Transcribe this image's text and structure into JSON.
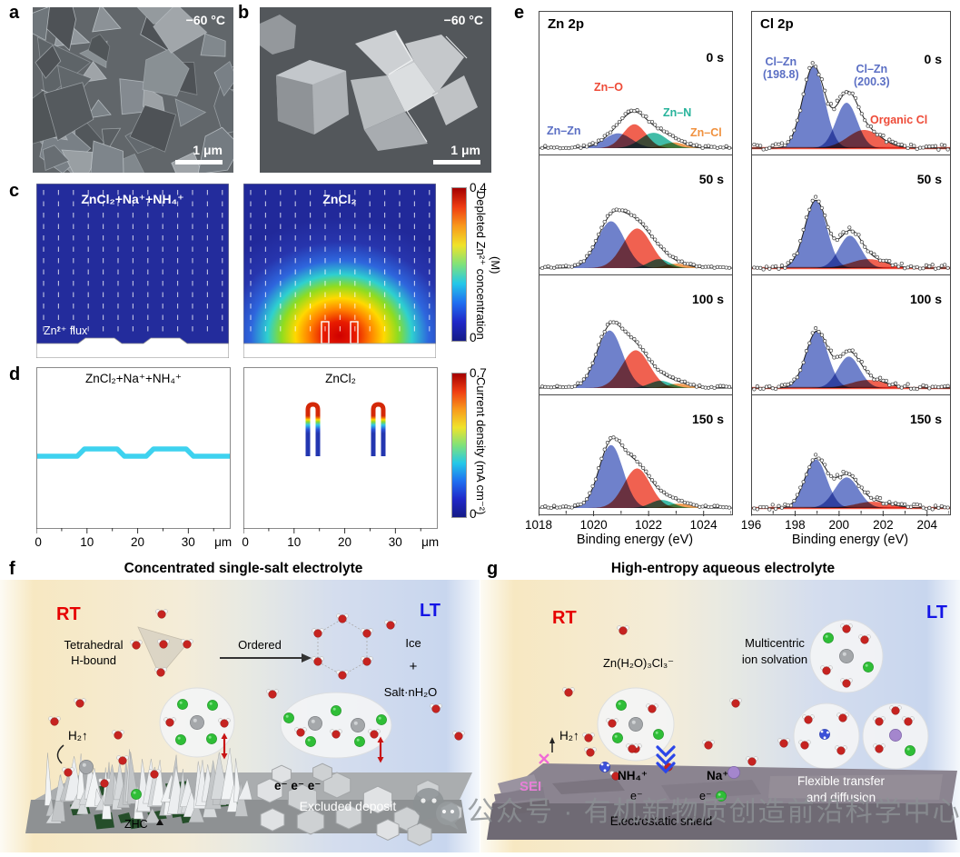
{
  "figure": {
    "panels": {
      "a": {
        "label": "a",
        "temperature": "−60 °C",
        "scale_bar": "1 μm"
      },
      "b": {
        "label": "b",
        "temperature": "−60 °C",
        "scale_bar": "1 μm"
      },
      "c": {
        "label": "c"
      },
      "d": {
        "label": "d"
      },
      "e": {
        "label": "e"
      },
      "f": {
        "label": "f",
        "title": "Concentrated single-salt electrolyte",
        "rt": "RT",
        "lt": "LT",
        "annotations": {
          "tetra1": "Tetrahedral",
          "tetra2": "H-bound",
          "ordered": "Ordered",
          "ice": "Ice",
          "plus": "+",
          "salt": "Salt·nH₂O",
          "h2": "H₂↑",
          "zhc": "ZHC",
          "electrons": "e⁻ e⁻ e⁻",
          "excluded": "Excluded deposit"
        }
      },
      "g": {
        "label": "g",
        "title": "High-entropy aqueous electrolyte",
        "rt": "RT",
        "lt": "LT",
        "annotations": {
          "complex": "Zn(H₂O)₃Cl₃⁻",
          "multi1": "Multicentric",
          "multi2": "ion solvation",
          "h2": "H₂↑",
          "sei": "SEI",
          "nh4": "NH₄⁺",
          "e1": "e⁻",
          "na": "Na⁺",
          "e2": "e⁻",
          "shield": "Electrostatic shield",
          "flex1": "Flexible transfer",
          "flex2": "and diffusion"
        }
      }
    },
    "watermark": {
      "icon": "wechat-icon",
      "text": "公众号 · 有机新物质创造前沿科学中心"
    }
  },
  "chart_data": [
    {
      "id": "c-simulation",
      "type": "heatmap",
      "panel_label": "c",
      "panels": [
        {
          "title": "ZnCl₂+Na⁺+NH₄⁺",
          "pattern": "uniform low Zn2+ depletion (~0 M) over flat deposit"
        },
        {
          "title": "ZnCl₂",
          "pattern": "hemispherical depletion plume reaching ~0.4 M above two protrusions"
        }
      ],
      "annotation": "Zn²⁺ flux",
      "colorbar": {
        "min": 0,
        "max": 0.4,
        "label": "Depleted Zn²⁺ concentration (M)"
      }
    },
    {
      "id": "d-simulation",
      "type": "area",
      "panel_label": "d",
      "panels": [
        {
          "title": "ZnCl₂+Na⁺+NH₄⁺",
          "profile": "uniform ~0.25 mA cm⁻² layer with two gentle wide bumps"
        },
        {
          "title": "ZnCl₂",
          "profile": "two sharp protrusions near 13 and 26 μm with tips reaching ~0.7 mA cm⁻²"
        }
      ],
      "x_ticks": [
        0,
        10,
        20,
        30
      ],
      "x_unit": "μm",
      "xlim": [
        0,
        38
      ],
      "colorbar": {
        "min": 0,
        "max": 0.7,
        "label": "Current density (mA cm⁻²)"
      }
    },
    {
      "id": "zn2p",
      "type": "line",
      "title": "Zn 2p",
      "xlabel": "Binding energy (eV)",
      "xlim": [
        1018,
        1025
      ],
      "x_ticks": [
        1018,
        1020,
        1022,
        1024
      ],
      "noise": 0.012,
      "legend": [
        {
          "label": "Zn–Zn",
          "color": "#5b6fc4"
        },
        {
          "label": "Zn–O",
          "color": "#ee4b38"
        },
        {
          "label": "Zn–N",
          "color": "#27b39b"
        },
        {
          "label": "Zn–Cl",
          "color": "#f0913f"
        }
      ],
      "series": [
        {
          "time": "0 s",
          "peaks": [
            [
              1020.85,
              0.13,
              0.5,
              0
            ],
            [
              1021.45,
              0.21,
              0.42,
              1
            ],
            [
              1022.15,
              0.135,
              0.48,
              2
            ],
            [
              1022.9,
              0.05,
              0.4,
              3
            ]
          ]
        },
        {
          "time": "50 s",
          "peaks": [
            [
              1020.6,
              0.52,
              0.5,
              0
            ],
            [
              1021.55,
              0.44,
              0.52,
              1
            ],
            [
              1022.35,
              0.1,
              0.38,
              2
            ],
            [
              1023.0,
              0.05,
              0.4,
              3
            ]
          ]
        },
        {
          "time": "100 s",
          "peaks": [
            [
              1020.55,
              0.64,
              0.47,
              0
            ],
            [
              1021.5,
              0.42,
              0.5,
              1
            ],
            [
              1022.4,
              0.08,
              0.4,
              2
            ],
            [
              1023.05,
              0.05,
              0.4,
              3
            ]
          ]
        },
        {
          "time": "150 s",
          "peaks": [
            [
              1020.6,
              0.7,
              0.44,
              0
            ],
            [
              1021.55,
              0.44,
              0.48,
              1
            ],
            [
              1022.45,
              0.09,
              0.4,
              2
            ],
            [
              1023.1,
              0.05,
              0.4,
              3
            ]
          ]
        }
      ]
    },
    {
      "id": "cl2p",
      "type": "line",
      "title": "Cl 2p",
      "xlabel": "Binding energy (eV)",
      "xlim": [
        196,
        205
      ],
      "x_ticks": [
        196,
        198,
        200,
        202,
        204
      ],
      "noise": 0.028,
      "baseline_color": "#ee4b38",
      "legend": [
        {
          "label": "Cl–Zn",
          "sub": "(198.8)",
          "color": "#5b6fc4"
        },
        {
          "label": "Cl–Zn",
          "sub": "(200.3)",
          "color": "#5b6fc4"
        },
        {
          "label": "Organic Cl",
          "color": "#ee4b38"
        }
      ],
      "series": [
        {
          "time": "0 s",
          "peaks": [
            [
              198.8,
              0.72,
              0.5,
              0
            ],
            [
              200.3,
              0.4,
              0.48,
              1
            ],
            [
              201.1,
              0.16,
              0.75,
              2
            ]
          ]
        },
        {
          "time": "50 s",
          "peaks": [
            [
              198.9,
              0.75,
              0.5,
              0
            ],
            [
              200.45,
              0.36,
              0.5,
              1
            ],
            [
              201.3,
              0.1,
              0.8,
              2
            ]
          ]
        },
        {
          "time": "100 s",
          "peaks": [
            [
              198.95,
              0.63,
              0.5,
              0
            ],
            [
              200.4,
              0.35,
              0.5,
              1
            ],
            [
              201.3,
              0.09,
              0.8,
              2
            ]
          ]
        },
        {
          "time": "150 s",
          "peaks": [
            [
              198.9,
              0.54,
              0.5,
              0
            ],
            [
              200.3,
              0.34,
              0.55,
              1
            ],
            [
              201.5,
              0.07,
              0.8,
              2
            ]
          ]
        }
      ]
    }
  ]
}
